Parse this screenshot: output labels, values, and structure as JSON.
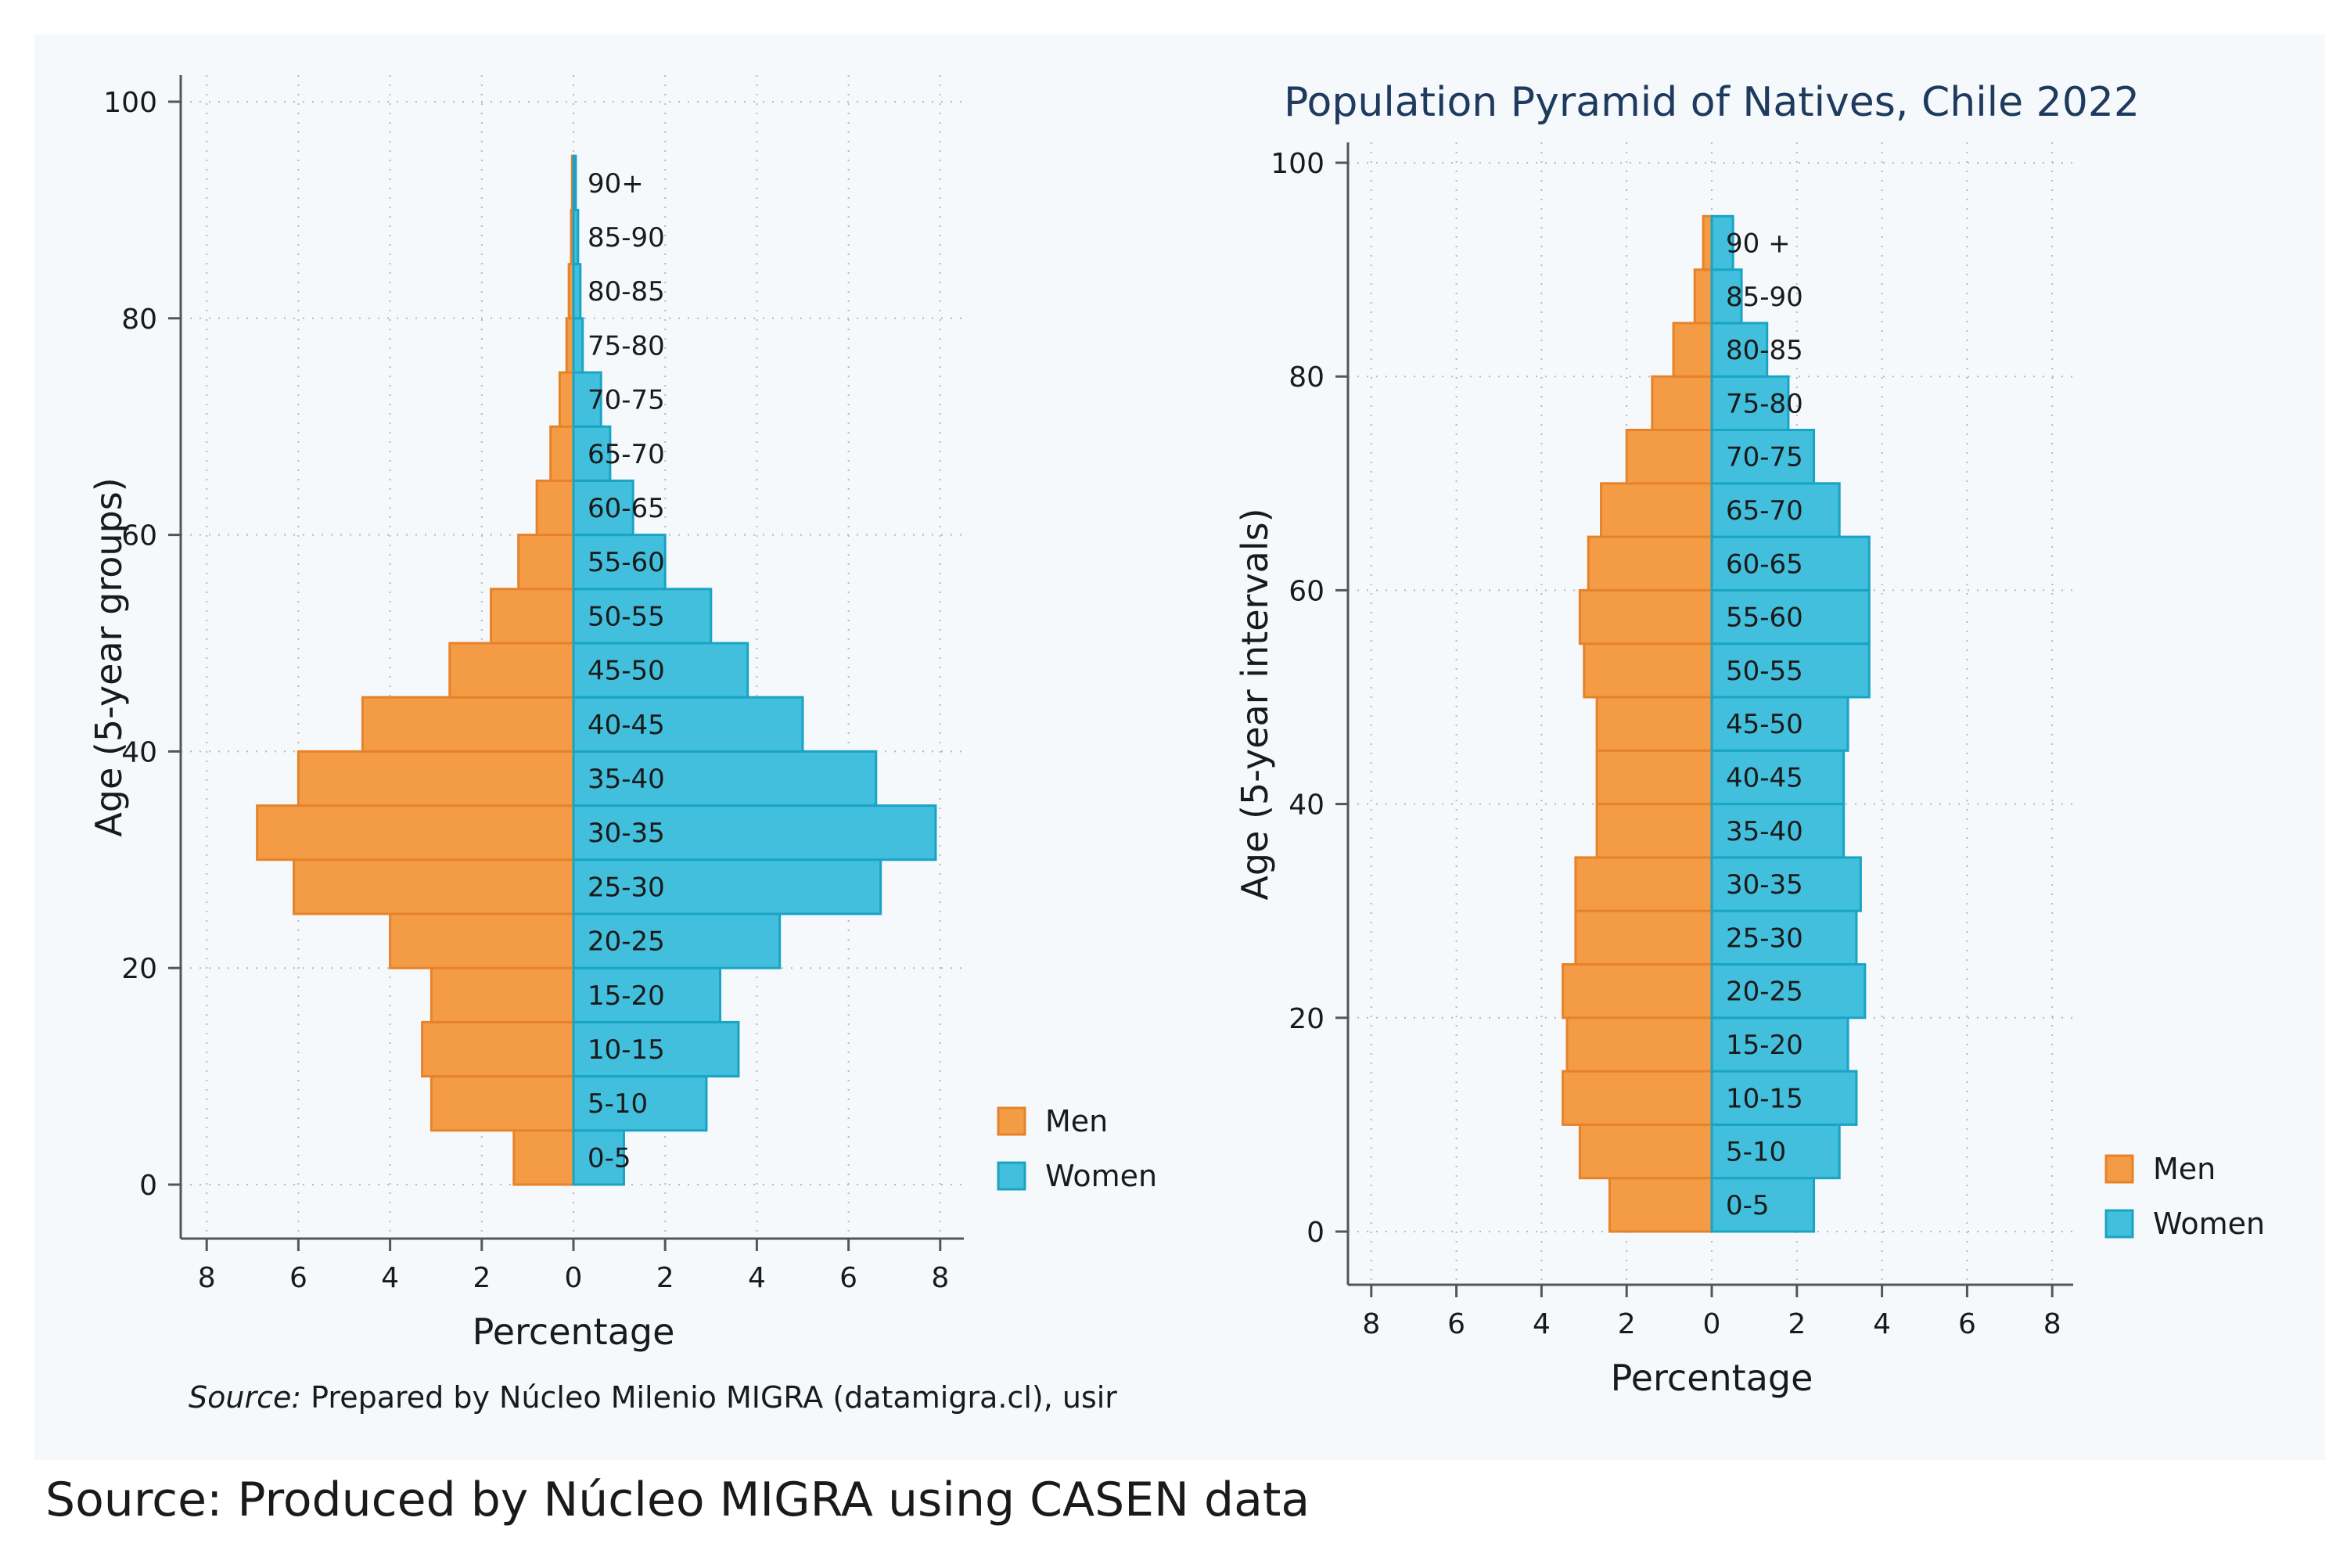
{
  "figure": {
    "caption": "Source: Produced by Núcleo MIGRA using CASEN data",
    "colors": {
      "panel_bg": "#f5f9fc",
      "men": "#f39c45",
      "men_edge": "#e6822a",
      "women": "#41bfdc",
      "women_edge": "#1aa3c4",
      "axis": "#555555",
      "grid": "#b8b8b8",
      "text": "#1a1a1a",
      "title": "#1f3a5f"
    }
  },
  "chart_data": [
    {
      "type": "bar",
      "orientation": "horizontal-pyramid",
      "title": "",
      "xlabel": "Percentage",
      "ylabel": "Age (5-year groups)",
      "xlim": [
        -8,
        8
      ],
      "ylim": [
        -5,
        102
      ],
      "x_ticks": [
        8,
        6,
        4,
        2,
        0,
        2,
        4,
        6,
        8
      ],
      "y_ticks": [
        0,
        20,
        40,
        60,
        80,
        100
      ],
      "grid": true,
      "legend_position": "right",
      "note_prefix": "Source:",
      "note": "Prepared by Núcleo Milenio MIGRA (datamigra.cl), usir",
      "categories": [
        "0-5",
        "5-10",
        "10-15",
        "15-20",
        "20-25",
        "25-30",
        "30-35",
        "35-40",
        "40-45",
        "45-50",
        "50-55",
        "55-60",
        "60-65",
        "65-70",
        "70-75",
        "75-80",
        "80-85",
        "85-90",
        "90+"
      ],
      "series": [
        {
          "name": "Men",
          "values": [
            1.3,
            3.1,
            3.3,
            3.1,
            4.0,
            6.1,
            6.9,
            6.0,
            4.6,
            2.7,
            1.8,
            1.2,
            0.8,
            0.5,
            0.3,
            0.15,
            0.1,
            0.05,
            0.03
          ]
        },
        {
          "name": "Women",
          "values": [
            1.1,
            2.9,
            3.6,
            3.2,
            4.5,
            6.7,
            7.9,
            6.6,
            5.0,
            3.8,
            3.0,
            2.0,
            1.3,
            0.8,
            0.6,
            0.2,
            0.15,
            0.1,
            0.05
          ]
        }
      ]
    },
    {
      "type": "bar",
      "orientation": "horizontal-pyramid",
      "title": "Population Pyramid of Natives, Chile 2022",
      "xlabel": "Percentage",
      "ylabel": "Age (5-year intervals)",
      "xlim": [
        -8,
        8
      ],
      "ylim": [
        -5,
        102
      ],
      "x_ticks": [
        8,
        6,
        4,
        2,
        0,
        2,
        4,
        6,
        8
      ],
      "y_ticks": [
        0,
        20,
        40,
        60,
        80,
        100
      ],
      "grid": true,
      "legend_position": "right",
      "categories": [
        "0-5",
        "5-10",
        "10-15",
        "15-20",
        "20-25",
        "25-30",
        "30-35",
        "35-40",
        "40-45",
        "45-50",
        "50-55",
        "55-60",
        "60-65",
        "65-70",
        "70-75",
        "75-80",
        "80-85",
        "85-90",
        "90 +"
      ],
      "series": [
        {
          "name": "Men",
          "values": [
            2.4,
            3.1,
            3.5,
            3.4,
            3.5,
            3.2,
            3.2,
            2.7,
            2.7,
            2.7,
            3.0,
            3.1,
            2.9,
            2.6,
            2.0,
            1.4,
            0.9,
            0.4,
            0.2
          ]
        },
        {
          "name": "Women",
          "values": [
            2.4,
            3.0,
            3.4,
            3.2,
            3.6,
            3.4,
            3.5,
            3.1,
            3.1,
            3.2,
            3.7,
            3.7,
            3.7,
            3.0,
            2.4,
            1.8,
            1.3,
            0.7,
            0.5
          ]
        }
      ]
    }
  ]
}
